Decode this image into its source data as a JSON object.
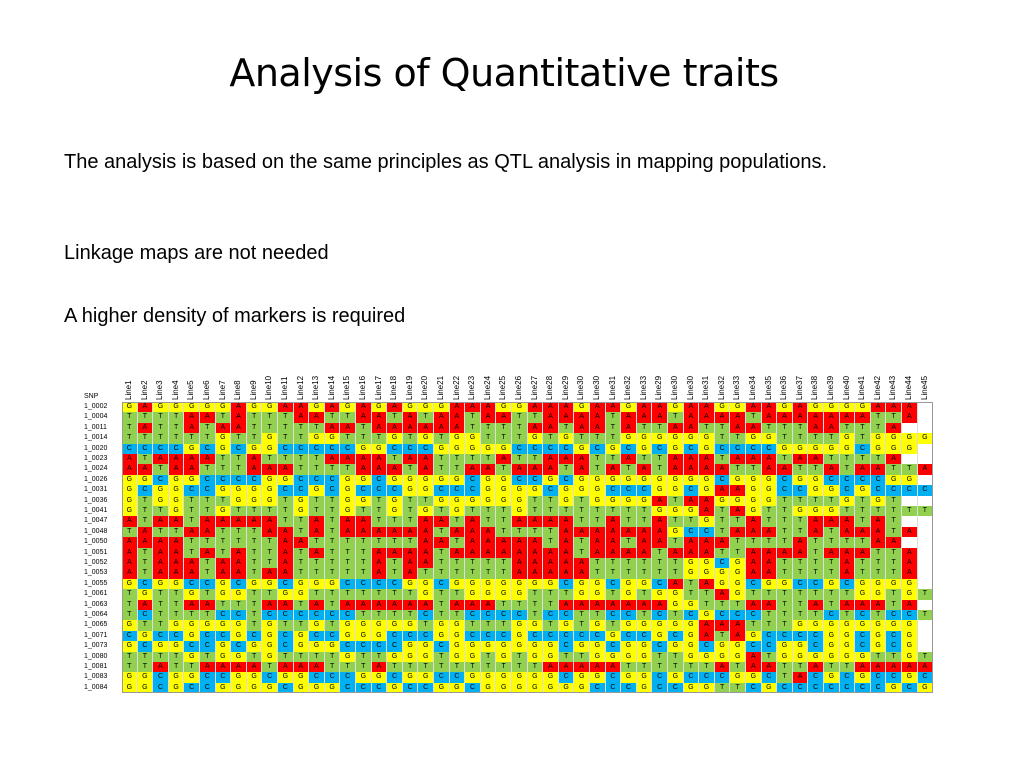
{
  "title": "Analysis of Quantitative traits",
  "bullets": [
    "The analysis is based on the same principles as QTL analysis in mapping populations.",
    "Linkage maps are not needed",
    "A higher density of markers is required"
  ],
  "table": {
    "corner_label": "SNP",
    "columns": [
      "Line1",
      "Line2",
      "Line3",
      "Line4",
      "Line5",
      "Line6",
      "Line7",
      "Line8",
      "Line9",
      "Line10",
      "Line11",
      "Line12",
      "Line13",
      "Line14",
      "Line15",
      "Line16",
      "Line17",
      "Line18",
      "Line19",
      "Line20",
      "Line21",
      "Line22",
      "Line23",
      "Line24",
      "Line25",
      "Line26",
      "Line27",
      "Line28",
      "Line29",
      "Line30",
      "Line30",
      "Line31",
      "Line32",
      "Line33",
      "Line29",
      "Line30",
      "Line30",
      "Line31",
      "Line32",
      "Line33",
      "Line34",
      "Line35",
      "Line36",
      "Line37",
      "Line38",
      "Line39",
      "Line40",
      "Line41",
      "Line42",
      "Line43",
      "Line44",
      "Line45"
    ],
    "colors": {
      "A": "#ff0000",
      "T": "#92d050",
      "G": "#ffff00",
      "C": "#00b0f0"
    },
    "rows": [
      {
        "id": "1_0002",
        "seq": "GAGGGGGAGGAAGAGAGAGGGAAAGGAAAGAAGAAGAAGGAAGAGGGGAAA"
      },
      {
        "id": "1_0004",
        "seq": "TTTTAATATTTAATTAATATAATAATTAAAATAAATAAAATAAAAAAATTA"
      },
      {
        "id": "1_0011",
        "seq": "TATTATAATTTTTAATAAAAAATTTTAATAATATTAATTAATTTAATTTA"
      },
      {
        "id": "1_0014",
        "seq": "TTTTTTGTTGTTGGTTTGTGTGGTTTGTGTTTGGGGGGTTGGTTTTGTGGGG"
      },
      {
        "id": "1_0020",
        "seq": "CCCCGCGCGGCCCCCGGCCCGGGGGCCCCGCGCGCGCGCCCCGGGGGCGGG"
      },
      {
        "id": "1_0023",
        "seq": "ATAAAATTATTTTAAAATAATTTTATTAAATTATTAAATAAATAATTTTA"
      },
      {
        "id": "1_0024",
        "seq": "AATAATTTAAATTTTAAATATTAATAAATATATATAAAATTAATTATAATTA"
      },
      {
        "id": "1_0026",
        "seq": "GGCGGCCCCGGCCCGGCGGGGGCGGCCGCGGGGGGGGGCGGGCGGCCCCGG"
      },
      {
        "id": "1_0031",
        "seq": "GCGGCCGGGGCCGCGCCCGGCCCGGGGCGGGCCCGGCGAAGGCCGGCGCCCC"
      },
      {
        "id": "1_0036",
        "seq": "GTGGTTTGGGTGTTGGTGTTGGGGGGTTGTGGGGATAAGGGGTTTTGTGT"
      },
      {
        "id": "1_0041",
        "seq": "GTTGTTGTTTTGTTGTTGTGTGTTTGTTTTTTTTGGGATAGTTGGGTTTTTT"
      },
      {
        "id": "1_0047",
        "seq": "ATAATAAAAATTATAATTTAATATTAAAATTATTATTGTTATTTAAATAT"
      },
      {
        "id": "1_0048",
        "seq": "TATTAATTTAATATAAAAAATAAATTTTAAAAAAAGCCTAAATTATAAATA"
      },
      {
        "id": "1_0050",
        "seq": "AAAATTTTTTAATTTTTTTAATAAAAATATAATAATAAATTTTATTTTAA"
      },
      {
        "id": "1_0051",
        "seq": "ATAATATATTATATTTAAAATAAAAAAAATAAAATAAATTAAAATAAATTA"
      },
      {
        "id": "1_0052",
        "seq": "ATAAATAATTATTTTTATAATTTTTAAAAATTTTTTGGCGAATTTTATTTA"
      },
      {
        "id": "1_0053",
        "seq": "ATAAATAATAATTTTTATATTTTTTAAAAATTTTTTGGGGAATTTTATTTA"
      },
      {
        "id": "1_0055",
        "seq": "GCGGCCGCGGCGGGCCCCGGCGGGGGGGCGGCGGCATAGGCGGCCGCGGGG"
      },
      {
        "id": "1_0061",
        "seq": "TGTTGTGGTTGGTTTTTTTGTTGGGGTTTGGTGTGGTTAGTTTTTTTGGTGT"
      },
      {
        "id": "1_0063",
        "seq": "TATTAATTTAATATAAAAAATAAATTTTAAAAAAAGGTTTAATTATAAATA"
      },
      {
        "id": "1_0064",
        "seq": "TCTTTTCCTCCCCCCTTTTCTTCCCCTCCTTCCTCTCGCCCTTTTCTCTCCT"
      },
      {
        "id": "1_0065",
        "seq": "GTTGGGGGTGTTGTGGGGGTGGTTTGGTGTGTGGGGGAAATTTGGGGGGGG"
      },
      {
        "id": "1_0071",
        "seq": "CGCCGCCGCGCGCCGGGCCCGGCCCGCCCCCGCCGCGATAGCCCCGGCGCG"
      },
      {
        "id": "1_0073",
        "seq": "GCGGCCGCGGCGGGCCCCGGCGGGGGGGCGGCGGCGGCGGCCGGCGGCGCG"
      },
      {
        "id": "1_0080",
        "seq": "TTTTGTGGTGTTTTGTTGGGTGGTGTGGTTGGGGTTGGGGATGGGGGGTTGT"
      },
      {
        "id": "1_0081",
        "seq": "TTATTAAAATAAATTTATTTTTTTTTTAAAAATTTTTTATAATTATTAAAAATT"
      },
      {
        "id": "1_0083",
        "seq": "GGCGGCCGGCGGCCCGGCGGCCGGGGGGCGGCGGCGCCCGGCTACGCGCCGCGGG"
      },
      {
        "id": "1_0084",
        "seq": "GGCGCCGGGGCGGGCCCGCCGGCGGGGGGGCCCGCCGGTTCGCCCCCCCGCG"
      }
    ]
  }
}
